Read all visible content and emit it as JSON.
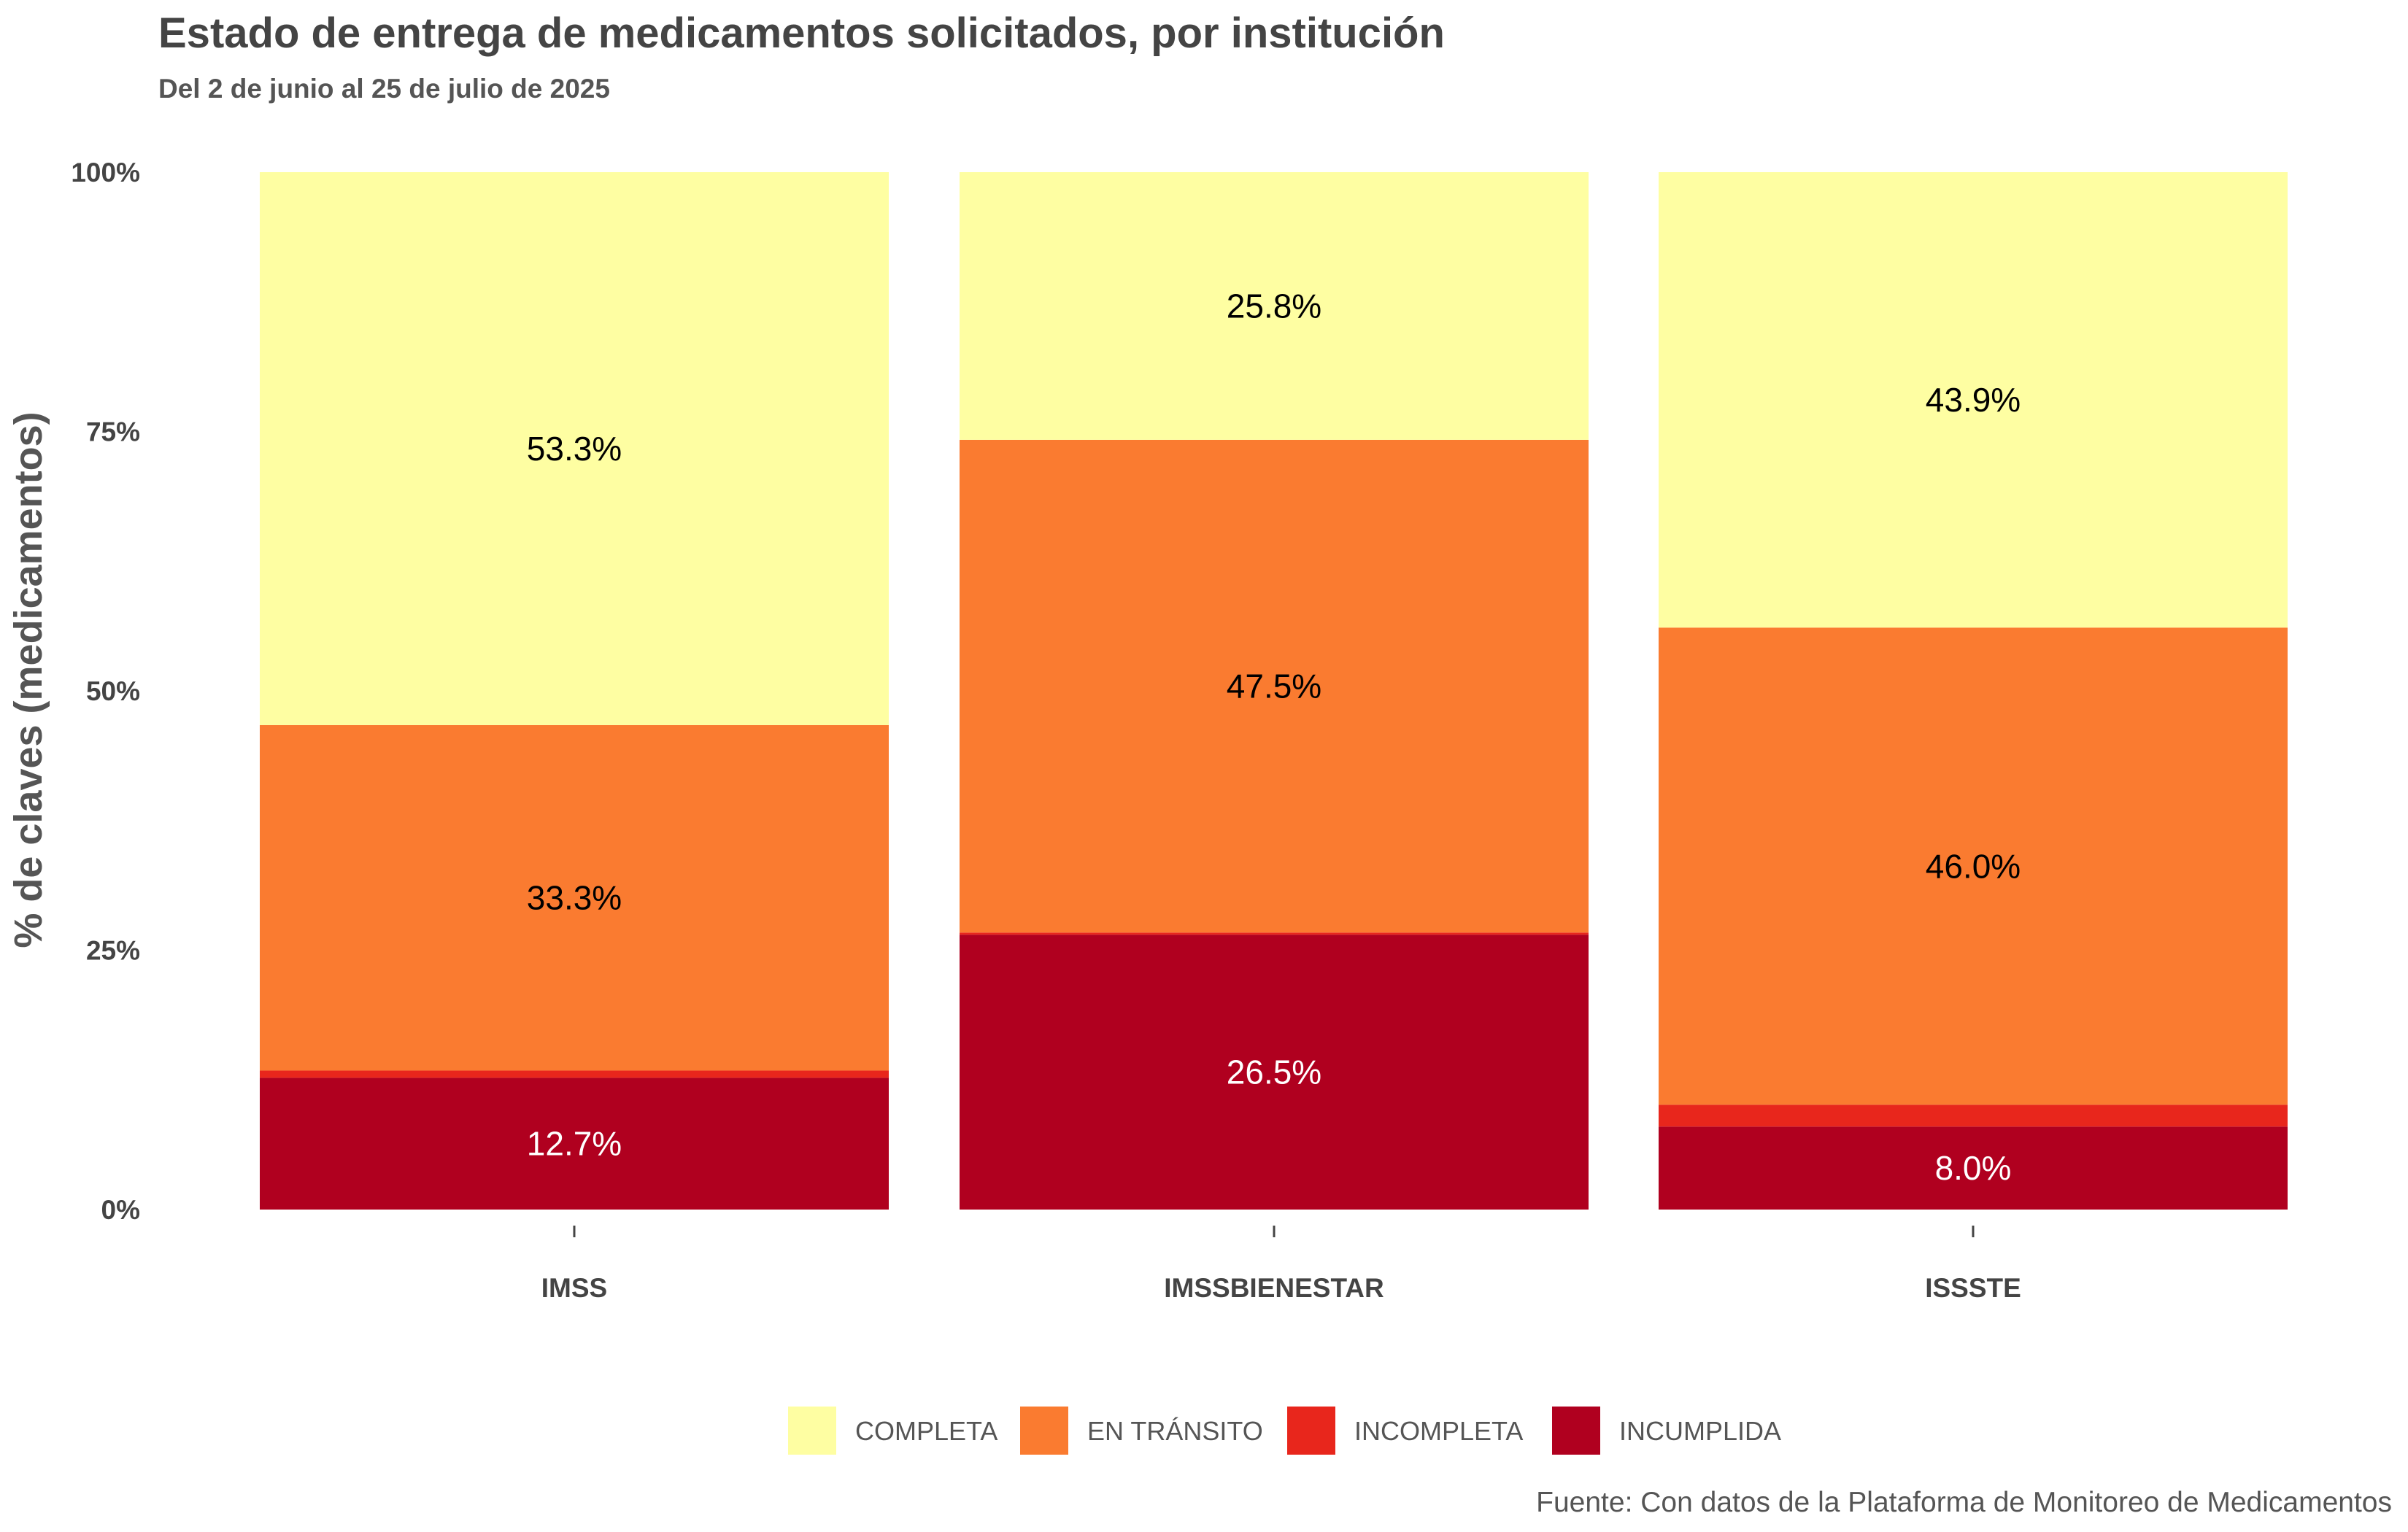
{
  "chart_data": {
    "type": "bar",
    "stacked": true,
    "title": "Estado de entrega de medicamentos solicitados, por institución",
    "subtitle": "Del 2 de junio al 25 de julio de 2025",
    "ylabel": "% de claves (medicamentos)",
    "xlabel": "",
    "ylim": [
      0,
      100
    ],
    "yticks": [
      "0%",
      "25%",
      "50%",
      "75%",
      "100%"
    ],
    "categories": [
      "IMSS",
      "IMSSBIENESTAR",
      "ISSSTE"
    ],
    "series": [
      {
        "name": "INCUMPLIDA",
        "color": "#B0001F",
        "values": [
          12.7,
          26.5,
          8.0
        ],
        "labels": [
          "12.7%",
          "26.5%",
          "8.0%"
        ],
        "label_color": "#ffffff"
      },
      {
        "name": "INCOMPLETA",
        "color": "#E8261C",
        "values": [
          0.7,
          0.2,
          2.1
        ],
        "labels": [
          "",
          "",
          ""
        ],
        "label_color": "#000000"
      },
      {
        "name": "EN TRÁNSITO",
        "color": "#FA7B30",
        "values": [
          33.3,
          47.5,
          46.0
        ],
        "labels": [
          "33.3%",
          "47.5%",
          "46.0%"
        ],
        "label_color": "#000000"
      },
      {
        "name": "COMPLETA",
        "color": "#FEFEA2",
        "values": [
          53.3,
          25.8,
          43.9
        ],
        "labels": [
          "53.3%",
          "25.8%",
          "43.9%"
        ],
        "label_color": "#000000"
      }
    ],
    "legend_order": [
      "COMPLETA",
      "EN TRÁNSITO",
      "INCOMPLETA",
      "INCUMPLIDA"
    ],
    "legend_position": "bottom",
    "grid": false,
    "caption": "Fuente: Con datos de la Plataforma de Monitoreo de Medicamentos"
  }
}
